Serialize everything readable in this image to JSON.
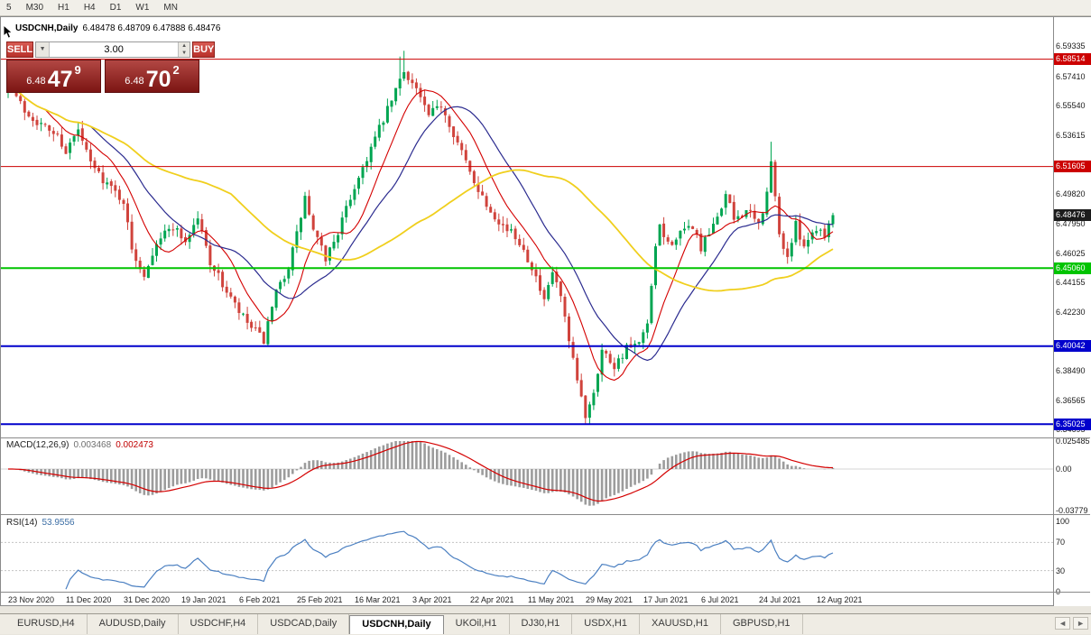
{
  "toolbar": {
    "items": [
      "5",
      "M30",
      "H1",
      "H4",
      "D1",
      "W1",
      "MN"
    ]
  },
  "chart_header": {
    "symbol_title": "USDCNH,Daily",
    "ohlc": "6.48478 6.48709 6.47888 6.48476"
  },
  "trade_panel": {
    "sell_label": "SELL",
    "buy_label": "BUY",
    "volume": "3.00",
    "dropdown_glyph": "▼",
    "spin_up_glyph": "▲",
    "spin_down_glyph": "▼",
    "sell_price": {
      "prefix": "6.48",
      "big": "47",
      "sup": "9"
    },
    "buy_price": {
      "prefix": "6.48",
      "big": "70",
      "sup": "2"
    }
  },
  "indicators": {
    "macd": {
      "name": "MACD(12,26,9)",
      "value": "0.003468",
      "signal": "0.002473"
    },
    "rsi": {
      "name": "RSI(14)",
      "value": "53.9556"
    }
  },
  "tabs": {
    "items": [
      {
        "label": "EURUSD,H4",
        "active": false
      },
      {
        "label": "AUDUSD,Daily",
        "active": false
      },
      {
        "label": "USDCHF,H4",
        "active": false
      },
      {
        "label": "USDCAD,Daily",
        "active": false
      },
      {
        "label": "USDCNH,Daily",
        "active": true
      },
      {
        "label": "UKOil,H1",
        "active": false
      },
      {
        "label": "DJ30,H1",
        "active": false
      },
      {
        "label": "USDX,H1",
        "active": false
      },
      {
        "label": "XAUUSD,H1",
        "active": false
      },
      {
        "label": "GBPUSD,H1",
        "active": false
      }
    ],
    "scroll_left": "◄",
    "scroll_right": "►"
  },
  "colors": {
    "bull": "#00a551",
    "bear": "#d0433c",
    "ma_fast": "#d40000",
    "ma_mid": "#2b2b8f",
    "ma_slow": "#f0cf1d",
    "macd_hist": "#9c9c9c",
    "macd_signal": "#d40000",
    "rsi_line": "#4a7fc1",
    "current_badge": "#1c1c1c"
  },
  "chart_data": {
    "type": "candlestick",
    "symbol": "USDCNH",
    "timeframe": "Daily",
    "ohlc_display": {
      "open": "6.48478",
      "high": "6.48709",
      "low": "6.47888",
      "close": "6.48476"
    },
    "ylim": [
      6.344,
      6.611
    ],
    "candle_count": 201,
    "last_close": 6.48476,
    "close_anchors": [
      [
        0,
        6.57
      ],
      [
        4,
        6.552
      ],
      [
        8,
        6.543
      ],
      [
        12,
        6.536
      ],
      [
        14,
        6.526
      ],
      [
        17,
        6.539
      ],
      [
        20,
        6.518
      ],
      [
        24,
        6.505
      ],
      [
        28,
        6.494
      ],
      [
        30,
        6.462
      ],
      [
        33,
        6.447
      ],
      [
        36,
        6.468
      ],
      [
        40,
        6.478
      ],
      [
        43,
        6.468
      ],
      [
        46,
        6.483
      ],
      [
        49,
        6.455
      ],
      [
        52,
        6.44
      ],
      [
        56,
        6.422
      ],
      [
        59,
        6.412
      ],
      [
        62,
        6.404
      ],
      [
        65,
        6.434
      ],
      [
        68,
        6.452
      ],
      [
        70,
        6.472
      ],
      [
        72,
        6.496
      ],
      [
        74,
        6.474
      ],
      [
        77,
        6.457
      ],
      [
        80,
        6.474
      ],
      [
        84,
        6.503
      ],
      [
        88,
        6.528
      ],
      [
        92,
        6.552
      ],
      [
        96,
        6.578
      ],
      [
        99,
        6.566
      ],
      [
        102,
        6.548
      ],
      [
        105,
        6.556
      ],
      [
        108,
        6.538
      ],
      [
        112,
        6.512
      ],
      [
        116,
        6.492
      ],
      [
        120,
        6.478
      ],
      [
        124,
        6.468
      ],
      [
        127,
        6.452
      ],
      [
        130,
        6.428
      ],
      [
        132,
        6.448
      ],
      [
        134,
        6.432
      ],
      [
        136,
        6.402
      ],
      [
        138,
        6.378
      ],
      [
        140,
        6.356
      ],
      [
        142,
        6.372
      ],
      [
        144,
        6.398
      ],
      [
        147,
        6.388
      ],
      [
        150,
        6.399
      ],
      [
        153,
        6.401
      ],
      [
        155,
        6.414
      ],
      [
        156,
        6.438
      ],
      [
        157,
        6.462
      ],
      [
        158,
        6.478
      ],
      [
        160,
        6.466
      ],
      [
        163,
        6.472
      ],
      [
        166,
        6.478
      ],
      [
        168,
        6.463
      ],
      [
        171,
        6.477
      ],
      [
        174,
        6.498
      ],
      [
        176,
        6.482
      ],
      [
        179,
        6.488
      ],
      [
        182,
        6.478
      ],
      [
        184,
        6.498
      ],
      [
        185,
        6.519
      ],
      [
        187,
        6.472
      ],
      [
        189,
        6.458
      ],
      [
        191,
        6.478
      ],
      [
        193,
        6.466
      ],
      [
        196,
        6.477
      ],
      [
        198,
        6.473
      ],
      [
        200,
        6.48476
      ]
    ],
    "extremes": [
      {
        "i": 95,
        "h": 6.5868
      },
      {
        "i": 96,
        "h": 6.5905
      },
      {
        "i": 140,
        "l": 6.3506
      },
      {
        "i": 185,
        "h": 6.532
      }
    ],
    "moving_averages": [
      {
        "name": "ma-fast",
        "window": 10,
        "color_key": "ma_fast",
        "sw": 1.1
      },
      {
        "name": "ma-mid",
        "window": 21,
        "color_key": "ma_mid",
        "sw": 1.2
      },
      {
        "name": "ma-slow",
        "window": 55,
        "color_key": "ma_slow",
        "sw": 1.8
      }
    ],
    "levels": [
      {
        "price": 6.58514,
        "label": "6.58514",
        "color": "#cc0000",
        "width": 1
      },
      {
        "price": 6.51605,
        "label": "6.51605",
        "color": "#cc0000",
        "width": 1
      },
      {
        "price": 6.4506,
        "label": "6.45060",
        "color": "#00c400",
        "width": 2
      },
      {
        "price": 6.40042,
        "label": "6.40042",
        "color": "#0000cc",
        "width": 2
      },
      {
        "price": 6.35025,
        "label": "6.35025",
        "color": "#0000cc",
        "width": 2
      }
    ],
    "current_price": {
      "value": 6.48476,
      "label": "6.48476"
    },
    "price_axis_ticks": [
      "6.59335",
      "6.57410",
      "6.55540",
      "6.53615",
      "6.49820",
      "6.47950",
      "6.46025",
      "6.44155",
      "6.42230",
      "6.38490",
      "6.36565",
      "6.34695"
    ],
    "x_axis_dates": [
      {
        "label": "23 Nov 2020",
        "candle": 0
      },
      {
        "label": "11 Dec 2020",
        "candle": 14
      },
      {
        "label": "31 Dec 2020",
        "candle": 28
      },
      {
        "label": "19 Jan 2021",
        "candle": 42
      },
      {
        "label": "6 Feb 2021",
        "candle": 56
      },
      {
        "label": "25 Feb 2021",
        "candle": 70
      },
      {
        "label": "16 Mar 2021",
        "candle": 84
      },
      {
        "label": "3 Apr 2021",
        "candle": 98
      },
      {
        "label": "22 Apr 2021",
        "candle": 112
      },
      {
        "label": "11 May 2021",
        "candle": 126
      },
      {
        "label": "29 May 2021",
        "candle": 140
      },
      {
        "label": "17 Jun 2021",
        "candle": 154
      },
      {
        "label": "6 Jul 2021",
        "candle": 168
      },
      {
        "label": "24 Jul 2021",
        "candle": 182
      },
      {
        "label": "12 Aug 2021",
        "candle": 196
      }
    ],
    "macd": {
      "params": "(12,26,9)",
      "value": 0.003468,
      "signal": 0.002473,
      "ylim": [
        -0.03779,
        0.025485
      ],
      "axis_ticks": [
        {
          "label": "0.025485",
          "v": 0.025485
        },
        {
          "label": "0.00",
          "v": 0
        },
        {
          "label": "-0.03779",
          "v": -0.03779
        }
      ]
    },
    "rsi": {
      "params": "(14)",
      "value": 53.9556,
      "levels": [
        70,
        30
      ],
      "ylim": [
        0,
        100
      ],
      "axis_ticks": [
        {
          "label": "100",
          "v": 100
        },
        {
          "label": "70",
          "v": 70
        },
        {
          "label": "30",
          "v": 30
        },
        {
          "label": "0",
          "v": 0
        }
      ]
    }
  }
}
